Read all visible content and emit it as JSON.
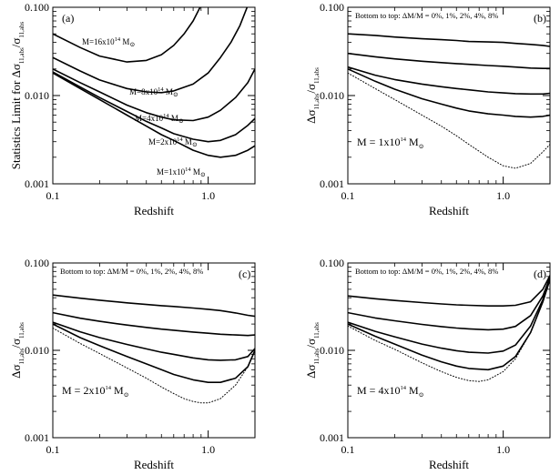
{
  "figure": {
    "x_axis_title": "Redshift",
    "y_axis_title_a": "Statistics Limit for Δσ11,abs/σ11,abs",
    "y_axis_title_main": "Δσ",
    "y_axis_title_sub": "11,abs",
    "y_axis_title_slash": "/σ",
    "y_axis_title_sub2": "11,abs",
    "y_axis_title_prefix_a": "Statistics Limit for "
  },
  "colors": {
    "curve": "#000000",
    "frame": "#000000",
    "background": "#ffffff"
  },
  "chart_data": [
    {
      "type": "line",
      "panel": "(a)",
      "xscale": "log",
      "yscale": "log",
      "xlim": [
        0.1,
        2.0
      ],
      "ylim": [
        0.001,
        0.1
      ],
      "x_ticks": [
        "0.1",
        "1.0"
      ],
      "y_ticks": [
        "0.001",
        "0.010",
        "0.100"
      ],
      "xlabel": "Redshift",
      "ylabel": "Statistics Limit for Δσ11,abs/σ11,abs",
      "series": [
        {
          "name": "M=16x10^14 M⊙",
          "label_main": "M=16x10",
          "label_sup": "14",
          "label_unit": " M",
          "style": "solid",
          "x": [
            0.1,
            0.15,
            0.2,
            0.3,
            0.4,
            0.5,
            0.6,
            0.7,
            0.8,
            0.9
          ],
          "y": [
            0.05,
            0.035,
            0.028,
            0.024,
            0.025,
            0.029,
            0.037,
            0.05,
            0.07,
            0.105
          ]
        },
        {
          "name": "M=8x10^14 M⊙",
          "label_main": "M=8x10",
          "label_sup": "14",
          "label_unit": " M",
          "style": "solid",
          "x": [
            0.1,
            0.15,
            0.2,
            0.3,
            0.4,
            0.5,
            0.6,
            0.8,
            1.0,
            1.2,
            1.4,
            1.6,
            1.8
          ],
          "y": [
            0.027,
            0.019,
            0.015,
            0.012,
            0.011,
            0.0108,
            0.0113,
            0.0135,
            0.018,
            0.027,
            0.04,
            0.062,
            0.105
          ]
        },
        {
          "name": "M=4x10^14 M⊙",
          "label_main": "M=4x10",
          "label_sup": "14",
          "label_unit": " M",
          "style": "solid",
          "x": [
            0.1,
            0.15,
            0.2,
            0.3,
            0.4,
            0.5,
            0.6,
            0.8,
            1.0,
            1.2,
            1.5,
            1.8,
            2.0
          ],
          "y": [
            0.02,
            0.014,
            0.011,
            0.0078,
            0.0064,
            0.0057,
            0.0053,
            0.0052,
            0.0057,
            0.0068,
            0.0095,
            0.014,
            0.02
          ]
        },
        {
          "name": "M=2x10^14 M⊙",
          "label_main": "M=2x10",
          "label_sup": "14",
          "label_unit": " M",
          "style": "solid",
          "x": [
            0.1,
            0.15,
            0.2,
            0.3,
            0.4,
            0.5,
            0.6,
            0.8,
            1.0,
            1.2,
            1.5,
            1.8,
            2.0
          ],
          "y": [
            0.0185,
            0.0125,
            0.0095,
            0.0066,
            0.0051,
            0.0043,
            0.0037,
            0.0032,
            0.003,
            0.0031,
            0.0036,
            0.0046,
            0.0055
          ]
        },
        {
          "name": "M=1x10^14 M⊙",
          "label_main": "M=1x10",
          "label_sup": "14",
          "label_unit": " M",
          "style": "solid",
          "x": [
            0.1,
            0.15,
            0.2,
            0.3,
            0.4,
            0.5,
            0.6,
            0.8,
            1.0,
            1.2,
            1.5,
            1.8,
            2.0
          ],
          "y": [
            0.018,
            0.012,
            0.009,
            0.006,
            0.0045,
            0.0036,
            0.0031,
            0.0024,
            0.0021,
            0.002,
            0.0021,
            0.0024,
            0.0027
          ]
        }
      ],
      "label_positions": [
        "upper",
        "upper",
        "upper",
        "upper",
        "upper"
      ]
    },
    {
      "type": "line",
      "panel": "(b)",
      "xscale": "log",
      "yscale": "log",
      "xlim": [
        0.1,
        2.0
      ],
      "ylim": [
        0.001,
        0.1
      ],
      "x_ticks": [
        "0.1",
        "1.0"
      ],
      "y_ticks": [
        "0.001",
        "0.010",
        "0.100"
      ],
      "xlabel": "Redshift",
      "ylabel": "Δσ11,abs/σ11,abs",
      "note": "Bottom to top: ΔM/M = 0%, 1%, 2%, 4%, 8%",
      "mass_main": "M = 1x10",
      "mass_sup": "14",
      "mass_unit": " M",
      "series": [
        {
          "name": "0%",
          "style": "dotted",
          "x": [
            0.1,
            0.15,
            0.2,
            0.3,
            0.4,
            0.5,
            0.6,
            0.8,
            1.0,
            1.2,
            1.5,
            1.8,
            2.0
          ],
          "y": [
            0.018,
            0.012,
            0.009,
            0.006,
            0.0045,
            0.0035,
            0.0028,
            0.002,
            0.0016,
            0.0015,
            0.0017,
            0.0023,
            0.0028
          ]
        },
        {
          "name": "1%",
          "style": "solid",
          "x": [
            0.1,
            0.15,
            0.2,
            0.3,
            0.4,
            0.5,
            0.6,
            0.8,
            1.0,
            1.2,
            1.5,
            1.8,
            2.0
          ],
          "y": [
            0.02,
            0.0145,
            0.0118,
            0.0092,
            0.008,
            0.0072,
            0.0067,
            0.0062,
            0.006,
            0.0058,
            0.0057,
            0.0058,
            0.006
          ]
        },
        {
          "name": "2%",
          "style": "solid",
          "x": [
            0.1,
            0.15,
            0.2,
            0.3,
            0.4,
            0.5,
            0.6,
            0.8,
            1.0,
            1.2,
            1.5,
            1.8,
            2.0
          ],
          "y": [
            0.021,
            0.017,
            0.0152,
            0.0135,
            0.0126,
            0.012,
            0.0116,
            0.011,
            0.0107,
            0.0105,
            0.0104,
            0.0104,
            0.0106
          ]
        },
        {
          "name": "4%",
          "style": "solid",
          "x": [
            0.1,
            0.15,
            0.2,
            0.3,
            0.4,
            0.5,
            0.6,
            0.8,
            1.0,
            1.2,
            1.5,
            1.8,
            2.0
          ],
          "y": [
            0.03,
            0.0275,
            0.026,
            0.0245,
            0.0236,
            0.023,
            0.0226,
            0.0219,
            0.0215,
            0.021,
            0.0205,
            0.0203,
            0.0203
          ]
        },
        {
          "name": "8%",
          "style": "solid",
          "x": [
            0.1,
            0.15,
            0.2,
            0.3,
            0.4,
            0.5,
            0.6,
            0.8,
            1.0,
            1.2,
            1.5,
            1.8,
            2.0
          ],
          "y": [
            0.05,
            0.048,
            0.046,
            0.044,
            0.043,
            0.042,
            0.041,
            0.0405,
            0.04,
            0.039,
            0.038,
            0.037,
            0.036
          ]
        }
      ]
    },
    {
      "type": "line",
      "panel": "(c)",
      "xscale": "log",
      "yscale": "log",
      "xlim": [
        0.1,
        2.0
      ],
      "ylim": [
        0.001,
        0.1
      ],
      "x_ticks": [
        "0.1",
        "1.0"
      ],
      "y_ticks": [
        "0.001",
        "0.010",
        "0.100"
      ],
      "xlabel": "Redshift",
      "ylabel": "Δσ11,abs/σ11,abs",
      "note": "Bottom to top: ΔM/M = 0%, 1%, 2%, 4%, 8%",
      "mass_main": "M = 2x10",
      "mass_sup": "14",
      "mass_unit": " M",
      "series": [
        {
          "name": "0%",
          "style": "dotted",
          "x": [
            0.1,
            0.15,
            0.2,
            0.3,
            0.4,
            0.5,
            0.6,
            0.7,
            0.8,
            0.9,
            1.0,
            1.2,
            1.5,
            1.8,
            2.0
          ],
          "y": [
            0.018,
            0.012,
            0.0092,
            0.0063,
            0.0048,
            0.0038,
            0.0032,
            0.0028,
            0.0026,
            0.0025,
            0.0025,
            0.0028,
            0.004,
            0.0065,
            0.01
          ]
        },
        {
          "name": "1%",
          "style": "solid",
          "x": [
            0.1,
            0.15,
            0.2,
            0.3,
            0.4,
            0.5,
            0.6,
            0.8,
            1.0,
            1.2,
            1.5,
            1.8,
            2.0
          ],
          "y": [
            0.02,
            0.014,
            0.0113,
            0.0085,
            0.007,
            0.006,
            0.0053,
            0.0046,
            0.0043,
            0.0043,
            0.0048,
            0.0065,
            0.01
          ]
        },
        {
          "name": "2%",
          "style": "solid",
          "x": [
            0.1,
            0.15,
            0.2,
            0.3,
            0.4,
            0.5,
            0.6,
            0.8,
            1.0,
            1.2,
            1.5,
            1.8,
            2.0
          ],
          "y": [
            0.021,
            0.0163,
            0.014,
            0.0117,
            0.0104,
            0.0095,
            0.009,
            0.0082,
            0.0078,
            0.0077,
            0.0078,
            0.0085,
            0.0105
          ]
        },
        {
          "name": "4%",
          "style": "solid",
          "x": [
            0.1,
            0.15,
            0.2,
            0.3,
            0.4,
            0.5,
            0.6,
            0.8,
            1.0,
            1.2,
            1.5,
            1.8,
            2.0
          ],
          "y": [
            0.027,
            0.0233,
            0.0215,
            0.0195,
            0.0183,
            0.0175,
            0.017,
            0.0162,
            0.0157,
            0.0153,
            0.015,
            0.0148,
            0.015
          ]
        },
        {
          "name": "8%",
          "style": "solid",
          "x": [
            0.1,
            0.15,
            0.2,
            0.3,
            0.4,
            0.5,
            0.6,
            0.8,
            1.0,
            1.2,
            1.5,
            1.8,
            2.0
          ],
          "y": [
            0.043,
            0.0395,
            0.0375,
            0.035,
            0.0335,
            0.0325,
            0.0318,
            0.0305,
            0.0295,
            0.0285,
            0.0268,
            0.0252,
            0.0245
          ]
        }
      ]
    },
    {
      "type": "line",
      "panel": "(d)",
      "xscale": "log",
      "yscale": "log",
      "xlim": [
        0.1,
        2.0
      ],
      "ylim": [
        0.001,
        0.1
      ],
      "x_ticks": [
        "0.1",
        "1.0"
      ],
      "y_ticks": [
        "0.001",
        "0.010",
        "0.100"
      ],
      "xlabel": "Redshift",
      "ylabel": "Δσ11,abs/σ11,abs",
      "note": "Bottom to top: ΔM/M = 0%, 1%, 2%, 4%, 8%",
      "mass_main": "M = 4x10",
      "mass_sup": "14",
      "mass_unit": " M",
      "series": [
        {
          "name": "0%",
          "style": "dotted",
          "x": [
            0.1,
            0.15,
            0.2,
            0.3,
            0.4,
            0.5,
            0.6,
            0.7,
            0.8,
            1.0,
            1.2,
            1.5,
            1.8,
            2.0
          ],
          "y": [
            0.019,
            0.013,
            0.0103,
            0.0072,
            0.0057,
            0.0049,
            0.0045,
            0.0044,
            0.0046,
            0.0057,
            0.008,
            0.016,
            0.036,
            0.065
          ]
        },
        {
          "name": "1%",
          "style": "solid",
          "x": [
            0.1,
            0.15,
            0.2,
            0.3,
            0.4,
            0.5,
            0.6,
            0.8,
            1.0,
            1.2,
            1.5,
            1.8,
            2.0
          ],
          "y": [
            0.02,
            0.0145,
            0.0118,
            0.0088,
            0.0074,
            0.0066,
            0.0062,
            0.006,
            0.0066,
            0.0085,
            0.016,
            0.036,
            0.065
          ]
        },
        {
          "name": "2%",
          "style": "solid",
          "x": [
            0.1,
            0.15,
            0.2,
            0.3,
            0.4,
            0.5,
            0.6,
            0.8,
            1.0,
            1.2,
            1.5,
            1.8,
            2.0
          ],
          "y": [
            0.021,
            0.0165,
            0.0143,
            0.0118,
            0.0106,
            0.0099,
            0.0095,
            0.0093,
            0.0098,
            0.0115,
            0.019,
            0.038,
            0.066
          ]
        },
        {
          "name": "4%",
          "style": "solid",
          "x": [
            0.1,
            0.15,
            0.2,
            0.3,
            0.4,
            0.5,
            0.6,
            0.8,
            1.0,
            1.2,
            1.5,
            1.8,
            2.0
          ],
          "y": [
            0.027,
            0.0235,
            0.0218,
            0.0198,
            0.0187,
            0.018,
            0.0176,
            0.0172,
            0.0175,
            0.0188,
            0.025,
            0.042,
            0.068
          ]
        },
        {
          "name": "8%",
          "style": "solid",
          "x": [
            0.1,
            0.15,
            0.2,
            0.3,
            0.4,
            0.5,
            0.6,
            0.8,
            1.0,
            1.2,
            1.5,
            1.8,
            2.0
          ],
          "y": [
            0.042,
            0.039,
            0.0372,
            0.0352,
            0.034,
            0.0332,
            0.0328,
            0.0322,
            0.0322,
            0.0328,
            0.036,
            0.05,
            0.072
          ]
        }
      ]
    }
  ]
}
